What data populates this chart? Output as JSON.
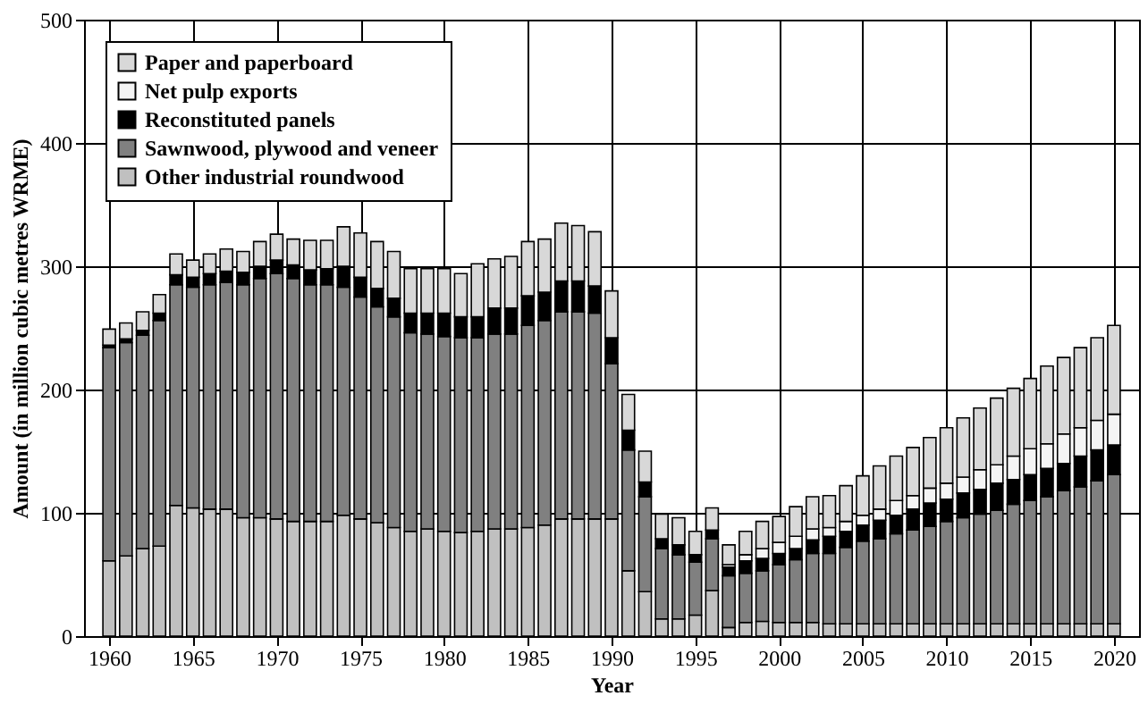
{
  "chart_data": {
    "type": "bar",
    "stacked": true,
    "xlabel": "Year",
    "ylabel": "Amount (in million cubic metres WRME)",
    "x": [
      1960,
      1961,
      1962,
      1963,
      1964,
      1965,
      1966,
      1967,
      1968,
      1969,
      1970,
      1971,
      1972,
      1973,
      1974,
      1975,
      1976,
      1977,
      1978,
      1979,
      1980,
      1981,
      1982,
      1983,
      1984,
      1985,
      1986,
      1987,
      1988,
      1989,
      1990,
      1991,
      1992,
      1993,
      1994,
      1995,
      1996,
      1997,
      1998,
      1999,
      2000,
      2001,
      2002,
      2003,
      2004,
      2005,
      2006,
      2007,
      2008,
      2009,
      2010,
      2011,
      2012,
      2013,
      2014,
      2015,
      2016,
      2017,
      2018,
      2019,
      2020
    ],
    "series": [
      {
        "name": "Other industrial roundwood",
        "color": "#c0c0c0",
        "values": [
          61,
          65,
          71,
          73,
          106,
          104,
          103,
          103,
          96,
          96,
          95,
          93,
          93,
          93,
          98,
          95,
          92,
          88,
          85,
          87,
          85,
          84,
          85,
          87,
          87,
          88,
          90,
          95,
          95,
          95,
          95,
          53,
          36,
          14,
          14,
          17,
          37,
          7,
          11,
          12,
          11,
          11,
          11,
          10,
          10,
          10,
          10,
          10,
          10,
          10,
          10,
          10,
          10,
          10,
          10,
          10,
          10,
          10,
          10,
          10,
          10
        ]
      },
      {
        "name": "Sawnwood, plywood and veneer",
        "color": "#808080",
        "values": [
          173,
          173,
          173,
          183,
          179,
          179,
          182,
          184,
          189,
          194,
          199,
          197,
          192,
          192,
          185,
          180,
          175,
          171,
          161,
          158,
          158,
          158,
          157,
          158,
          158,
          164,
          166,
          168,
          168,
          167,
          126,
          98,
          77,
          57,
          52,
          43,
          42,
          42,
          40,
          41,
          47,
          51,
          56,
          57,
          62,
          67,
          69,
          73,
          76,
          79,
          83,
          86,
          89,
          92,
          97,
          100,
          103,
          108,
          111,
          116,
          121
        ]
      },
      {
        "name": "Reconstituted panels",
        "color": "#000000",
        "values": [
          2,
          3,
          4,
          6,
          8,
          8,
          9,
          9,
          10,
          10,
          11,
          11,
          12,
          13,
          17,
          16,
          15,
          15,
          16,
          17,
          19,
          17,
          17,
          21,
          21,
          24,
          23,
          25,
          25,
          22,
          21,
          16,
          12,
          8,
          8,
          6,
          7,
          7,
          10,
          10,
          9,
          9,
          11,
          14,
          13,
          13,
          15,
          15,
          17,
          19,
          18,
          20,
          20,
          22,
          20,
          21,
          23,
          22,
          25,
          25,
          24
        ]
      },
      {
        "name": "Net pulp exports",
        "color": "#f4f4f4",
        "values": [
          0,
          0,
          0,
          0,
          0,
          0,
          0,
          0,
          0,
          0,
          0,
          0,
          0,
          0,
          0,
          0,
          0,
          0,
          0,
          0,
          0,
          0,
          0,
          0,
          0,
          0,
          0,
          0,
          0,
          0,
          0,
          0,
          0,
          0,
          0,
          0,
          0,
          2,
          5,
          8,
          9,
          10,
          9,
          7,
          8,
          8,
          9,
          12,
          11,
          12,
          13,
          13,
          16,
          15,
          19,
          21,
          20,
          24,
          23,
          24,
          25
        ]
      },
      {
        "name": "Paper and paperboard",
        "color": "#d8d8d8",
        "values": [
          13,
          13,
          15,
          15,
          17,
          14,
          16,
          18,
          17,
          20,
          21,
          21,
          24,
          23,
          32,
          36,
          38,
          38,
          36,
          36,
          36,
          35,
          43,
          40,
          42,
          44,
          43,
          47,
          45,
          44,
          38,
          29,
          25,
          20,
          22,
          19,
          18,
          16,
          19,
          22,
          21,
          24,
          26,
          26,
          29,
          32,
          35,
          36,
          39,
          41,
          45,
          48,
          50,
          54,
          55,
          57,
          63,
          62,
          65,
          67,
          72
        ]
      }
    ],
    "xlim": [
      1958.5,
      2021.5
    ],
    "xticks": [
      1960,
      1965,
      1970,
      1975,
      1980,
      1985,
      1990,
      1995,
      2000,
      2005,
      2010,
      2015,
      2020
    ],
    "ylim": [
      0,
      500
    ],
    "yticks": [
      0,
      100,
      200,
      300,
      400,
      500
    ],
    "grid": true,
    "legend": "top left"
  }
}
